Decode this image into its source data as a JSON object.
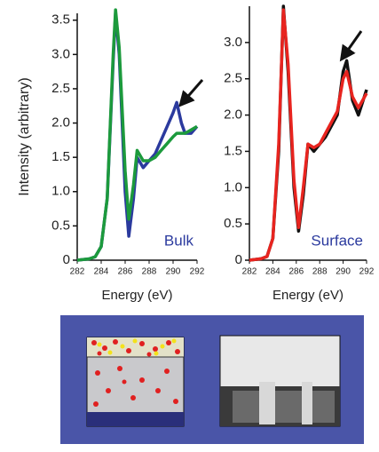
{
  "chart_data": [
    {
      "type": "line",
      "y_label": "Intensity (arbitrary)",
      "x_label": "Energy (eV)",
      "annotation": "Bulk",
      "x": [
        282,
        283,
        283.5,
        284,
        284.5,
        285,
        285.2,
        285.5,
        286,
        286.3,
        286.7,
        287,
        287.5,
        288,
        288.5,
        289,
        289.5,
        290,
        290.3,
        290.7,
        291,
        291.5,
        292
      ],
      "series": [
        {
          "color": "#2b3a9e",
          "values": [
            0,
            0.02,
            0.05,
            0.2,
            0.9,
            2.9,
            3.6,
            3.0,
            1.0,
            0.35,
            0.9,
            1.5,
            1.35,
            1.45,
            1.55,
            1.75,
            1.95,
            2.15,
            2.3,
            2.0,
            1.85,
            1.85,
            1.95
          ]
        },
        {
          "color": "#1c9a3c",
          "values": [
            0,
            0.02,
            0.05,
            0.2,
            0.9,
            3.0,
            3.65,
            3.1,
            1.3,
            0.6,
            1.1,
            1.6,
            1.45,
            1.45,
            1.5,
            1.6,
            1.7,
            1.8,
            1.85,
            1.85,
            1.85,
            1.9,
            1.95
          ]
        }
      ],
      "xlim": [
        282,
        292
      ],
      "xticks": [
        282,
        284,
        286,
        288,
        290,
        292
      ],
      "ylim": [
        0,
        3.6
      ],
      "yticks": [
        0,
        0.5,
        {
          "value": 1,
          "label": "1.0"
        },
        1.5,
        {
          "value": 2,
          "label": "2.0"
        },
        2.5,
        {
          "value": 3,
          "label": "3.0"
        },
        3.5
      ]
    },
    {
      "type": "line",
      "x_label": "Energy (eV)",
      "annotation": "Surface",
      "x": [
        282,
        283,
        283.5,
        284,
        284.5,
        284.9,
        285.3,
        285.8,
        286.2,
        286.6,
        287,
        287.5,
        288,
        288.5,
        289,
        289.5,
        290,
        290.3,
        290.8,
        291.3,
        292
      ],
      "series": [
        {
          "color": "#111111",
          "values": [
            0,
            0.02,
            0.05,
            0.3,
            1.5,
            3.5,
            2.6,
            1.0,
            0.4,
            0.9,
            1.6,
            1.5,
            1.6,
            1.7,
            1.85,
            2.0,
            2.6,
            2.75,
            2.2,
            2.0,
            2.35
          ]
        },
        {
          "color": "#e8241f",
          "values": [
            0,
            0.02,
            0.05,
            0.3,
            1.6,
            3.45,
            2.7,
            1.1,
            0.45,
            1.0,
            1.6,
            1.55,
            1.6,
            1.75,
            1.9,
            2.05,
            2.5,
            2.6,
            2.25,
            2.1,
            2.3
          ]
        }
      ],
      "xlim": [
        282,
        292
      ],
      "xticks": [
        282,
        284,
        286,
        288,
        290,
        292
      ],
      "ylim": [
        0,
        3.5
      ],
      "yticks": [
        0,
        0.5,
        {
          "value": 1,
          "label": "1.0"
        },
        1.5,
        {
          "value": 2,
          "label": "2.0"
        },
        2.5,
        {
          "value": 3,
          "label": "3.0"
        }
      ]
    }
  ]
}
